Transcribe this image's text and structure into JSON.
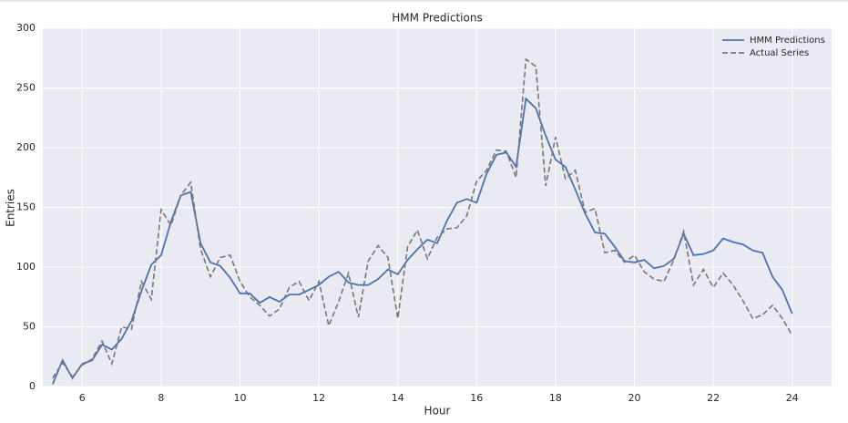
{
  "chart_data": {
    "type": "line",
    "title": "HMM Predictions",
    "xlabel": "Hour",
    "ylabel": "Entries",
    "x": [
      5.25,
      5.5,
      5.75,
      6,
      6.25,
      6.5,
      6.75,
      7,
      7.25,
      7.5,
      7.75,
      8,
      8.25,
      8.5,
      8.75,
      9,
      9.25,
      9.5,
      9.75,
      10,
      10.25,
      10.5,
      10.75,
      11,
      11.25,
      11.5,
      11.75,
      12,
      12.25,
      12.5,
      12.75,
      13,
      13.25,
      13.5,
      13.75,
      14,
      14.25,
      14.5,
      14.75,
      15,
      15.25,
      15.5,
      15.75,
      16,
      16.25,
      16.5,
      16.75,
      17,
      17.25,
      17.5,
      17.75,
      18,
      18.25,
      18.5,
      18.75,
      19,
      19.25,
      19.5,
      19.75,
      20,
      20.25,
      20.5,
      20.75,
      21,
      21.25,
      21.5,
      21.75,
      22,
      22.25,
      22.5,
      22.75,
      23,
      23.25,
      23.5,
      23.75,
      24
    ],
    "series": [
      {
        "name": "HMM Predictions",
        "color": "#4c72b0",
        "dash": false,
        "values": [
          2,
          22,
          7,
          19,
          22,
          35,
          31,
          40,
          55,
          80,
          102,
          110,
          138,
          160,
          163,
          120,
          104,
          101,
          91,
          78,
          78,
          70,
          75,
          71,
          77,
          77,
          81,
          85,
          92,
          96,
          87,
          85,
          85,
          90,
          98,
          94,
          106,
          115,
          123,
          120,
          139,
          154,
          157,
          154,
          178,
          194,
          196,
          184,
          241,
          233,
          210,
          190,
          184,
          165,
          145,
          129,
          128,
          117,
          105,
          104,
          106,
          99,
          101,
          107,
          128,
          110,
          111,
          114,
          124,
          121,
          119,
          114,
          112,
          92,
          81,
          61
        ]
      },
      {
        "name": "Actual Series",
        "color": "#777777",
        "dash": true,
        "values": [
          7,
          20,
          8,
          18,
          23,
          38,
          19,
          50,
          48,
          88,
          73,
          148,
          135,
          160,
          171,
          115,
          92,
          108,
          110,
          88,
          75,
          68,
          59,
          65,
          83,
          88,
          72,
          88,
          51,
          71,
          95,
          58,
          105,
          118,
          108,
          57,
          117,
          131,
          107,
          125,
          132,
          133,
          143,
          172,
          181,
          198,
          197,
          175,
          274,
          268,
          168,
          209,
          174,
          181,
          146,
          149,
          112,
          114,
          104,
          110,
          96,
          90,
          88,
          106,
          130,
          85,
          98,
          83,
          95,
          85,
          72,
          57,
          60,
          68,
          57,
          43
        ]
      }
    ],
    "xlim": [
      5,
      25
    ],
    "ylim": [
      0,
      300
    ],
    "xticks": [
      6,
      8,
      10,
      12,
      14,
      16,
      18,
      20,
      22,
      24
    ],
    "yticks": [
      0,
      50,
      100,
      150,
      200,
      250,
      300
    ],
    "grid": true,
    "legend": "upper right"
  }
}
